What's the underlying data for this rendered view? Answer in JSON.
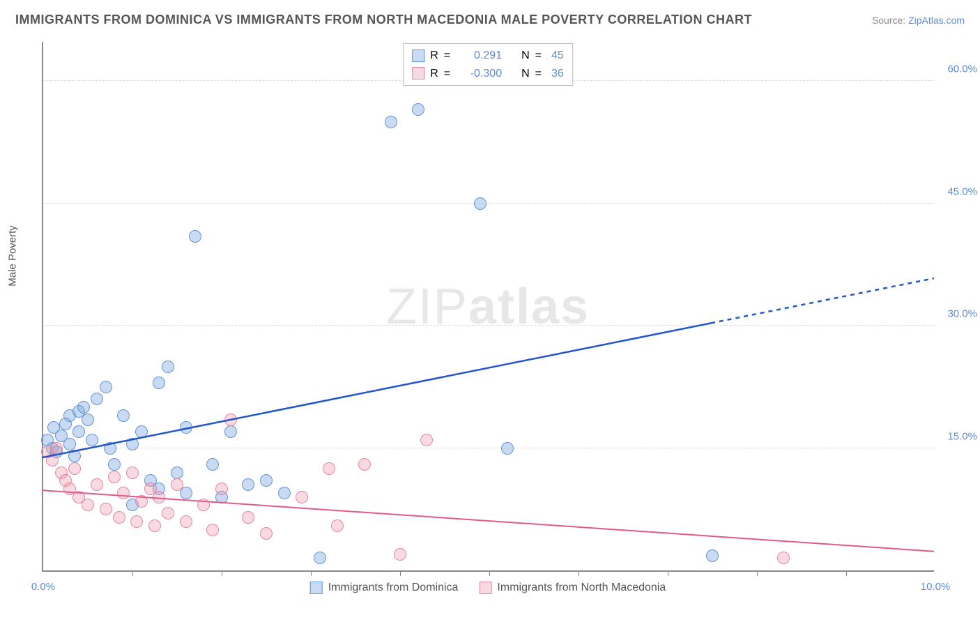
{
  "title": "IMMIGRANTS FROM DOMINICA VS IMMIGRANTS FROM NORTH MACEDONIA MALE POVERTY CORRELATION CHART",
  "source_prefix": "Source: ",
  "source_link": "ZipAtlas.com",
  "ylabel": "Male Poverty",
  "watermark_light": "ZIP",
  "watermark_bold": "atlas",
  "chart": {
    "type": "scatter",
    "xlim": [
      0.0,
      10.0
    ],
    "ylim": [
      0.0,
      65.0
    ],
    "xticks": [
      0.0,
      10.0
    ],
    "xtick_labels": [
      "0.0%",
      "10.0%"
    ],
    "xtick_minor": [
      1.0,
      2.0,
      3.0,
      4.0,
      5.0,
      6.0,
      7.0,
      8.0,
      9.0
    ],
    "yticks": [
      15.0,
      30.0,
      45.0,
      60.0
    ],
    "ytick_labels": [
      "15.0%",
      "30.0%",
      "45.0%",
      "60.0%"
    ],
    "background_color": "#ffffff",
    "grid_color": "#dddddd",
    "axis_color": "#888888",
    "marker_radius": 9,
    "series": [
      {
        "name": "Immigrants from Dominica",
        "color_fill": "rgba(120,165,225,0.4)",
        "color_stroke": "#5a8cd2",
        "line_color": "#2255cc",
        "line_width": 2.5,
        "R": "0.291",
        "N": "45",
        "trend": {
          "y_at_xmin": 14.0,
          "y_at_xmax": 36.0,
          "solid_until_x": 7.5
        },
        "points": [
          [
            0.05,
            16.0
          ],
          [
            0.1,
            15.0
          ],
          [
            0.12,
            17.5
          ],
          [
            0.15,
            14.5
          ],
          [
            0.2,
            16.5
          ],
          [
            0.25,
            18.0
          ],
          [
            0.3,
            19.0
          ],
          [
            0.3,
            15.5
          ],
          [
            0.35,
            14.0
          ],
          [
            0.4,
            17.0
          ],
          [
            0.4,
            19.5
          ],
          [
            0.45,
            20.0
          ],
          [
            0.5,
            18.5
          ],
          [
            0.55,
            16.0
          ],
          [
            0.6,
            21.0
          ],
          [
            0.7,
            22.5
          ],
          [
            0.75,
            15.0
          ],
          [
            0.8,
            13.0
          ],
          [
            0.9,
            19.0
          ],
          [
            1.0,
            15.5
          ],
          [
            1.0,
            8.0
          ],
          [
            1.1,
            17.0
          ],
          [
            1.2,
            11.0
          ],
          [
            1.3,
            10.0
          ],
          [
            1.3,
            23.0
          ],
          [
            1.4,
            25.0
          ],
          [
            1.5,
            12.0
          ],
          [
            1.6,
            9.5
          ],
          [
            1.6,
            17.5
          ],
          [
            1.7,
            41.0
          ],
          [
            1.9,
            13.0
          ],
          [
            2.0,
            9.0
          ],
          [
            2.1,
            17.0
          ],
          [
            2.3,
            10.5
          ],
          [
            2.5,
            11.0
          ],
          [
            2.7,
            9.5
          ],
          [
            3.1,
            1.5
          ],
          [
            3.9,
            55.0
          ],
          [
            4.2,
            56.5
          ],
          [
            4.9,
            45.0
          ],
          [
            5.2,
            15.0
          ],
          [
            7.5,
            1.8
          ]
        ]
      },
      {
        "name": "Immigrants from North Macedonia",
        "color_fill": "rgba(240,150,170,0.35)",
        "color_stroke": "#e17896",
        "line_color": "#e05a8a",
        "line_width": 2,
        "R": "-0.300",
        "N": "36",
        "trend": {
          "y_at_xmin": 10.0,
          "y_at_xmax": 2.5,
          "solid_until_x": 10.0
        },
        "points": [
          [
            0.05,
            14.5
          ],
          [
            0.1,
            13.5
          ],
          [
            0.15,
            15.0
          ],
          [
            0.2,
            12.0
          ],
          [
            0.25,
            11.0
          ],
          [
            0.3,
            10.0
          ],
          [
            0.35,
            12.5
          ],
          [
            0.4,
            9.0
          ],
          [
            0.5,
            8.0
          ],
          [
            0.6,
            10.5
          ],
          [
            0.7,
            7.5
          ],
          [
            0.8,
            11.5
          ],
          [
            0.85,
            6.5
          ],
          [
            0.9,
            9.5
          ],
          [
            1.0,
            12.0
          ],
          [
            1.05,
            6.0
          ],
          [
            1.1,
            8.5
          ],
          [
            1.2,
            10.0
          ],
          [
            1.25,
            5.5
          ],
          [
            1.3,
            9.0
          ],
          [
            1.4,
            7.0
          ],
          [
            1.5,
            10.5
          ],
          [
            1.6,
            6.0
          ],
          [
            1.8,
            8.0
          ],
          [
            1.9,
            5.0
          ],
          [
            2.0,
            10.0
          ],
          [
            2.1,
            18.5
          ],
          [
            2.3,
            6.5
          ],
          [
            2.5,
            4.5
          ],
          [
            2.9,
            9.0
          ],
          [
            3.2,
            12.5
          ],
          [
            3.3,
            5.5
          ],
          [
            3.6,
            13.0
          ],
          [
            4.0,
            2.0
          ],
          [
            4.3,
            16.0
          ],
          [
            8.3,
            1.5
          ]
        ]
      }
    ]
  },
  "stats_labels": {
    "R": "R",
    "equals": "=",
    "N": "N"
  }
}
